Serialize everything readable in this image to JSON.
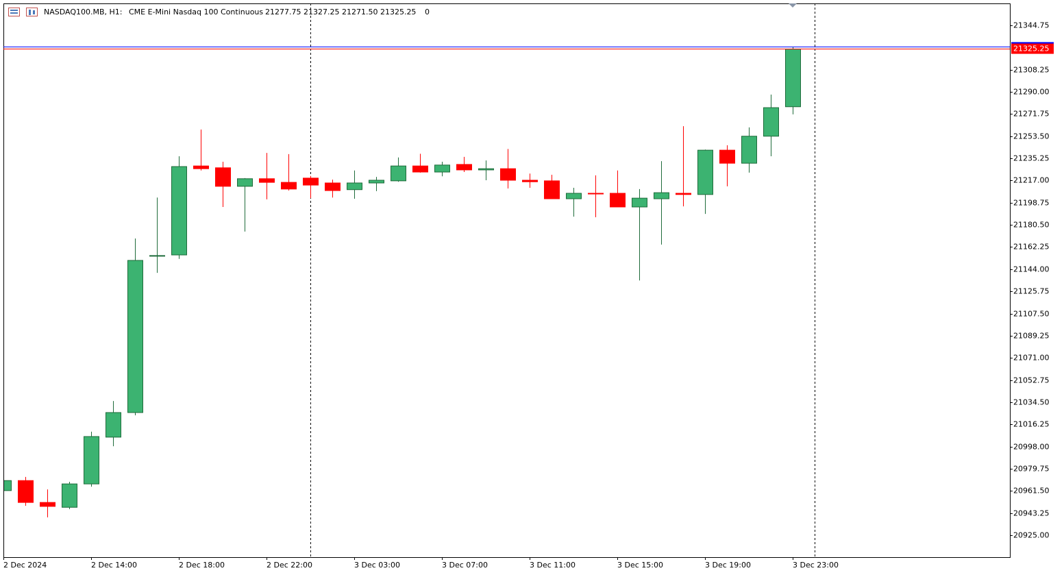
{
  "chart_data": {
    "type": "candlestick",
    "header": {
      "symbol": "NASDAQ100.MB, H1:",
      "description": "CME E-Mini Nasdaq 100 Continuous",
      "ohlc": "21277.75 21327.25 21271.50 21325.25",
      "volume": "0"
    },
    "categories": [
      "2 Dec 2024",
      null,
      null,
      null,
      "2 Dec 14:00",
      null,
      null,
      null,
      "2 Dec 18:00",
      null,
      null,
      null,
      "2 Dec 22:00",
      null,
      null,
      null,
      "3 Dec 03:00",
      null,
      null,
      null,
      "3 Dec 07:00",
      null,
      null,
      null,
      "3 Dec 11:00",
      null,
      null,
      null,
      "3 Dec 15:00",
      null,
      null,
      null,
      "3 Dec 19:00",
      null,
      null,
      null,
      "3 Dec 23:00"
    ],
    "open": [
      20961.75,
      20970.0,
      20952.0,
      20948.0,
      20967.25,
      21005.75,
      21026.0,
      21155.0,
      21155.75,
      21229.0,
      21227.5,
      21212.25,
      21218.5,
      21215.5,
      21219.0,
      21215.0,
      21209.5,
      21215.0,
      21216.75,
      21229.0,
      21224.0,
      21230.25,
      21225.75,
      21226.75,
      21217.25,
      21216.75,
      21202.0,
      21206.5,
      21206.5,
      21195.25,
      21202.0,
      21206.5,
      21205.5,
      21242.0,
      21231.25,
      21253.5,
      21277.75
    ],
    "high": [
      20971.25,
      20973.0,
      20962.75,
      20969.0,
      21010.25,
      21035.5,
      21169.25,
      21203.0,
      21237.0,
      21259.0,
      21232.5,
      21219.0,
      21239.75,
      21238.75,
      21220.75,
      21217.75,
      21225.25,
      21220.0,
      21236.0,
      21239.0,
      21232.5,
      21236.5,
      21233.5,
      21243.0,
      21222.75,
      21221.75,
      21211.0,
      21221.25,
      21225.25,
      21210.0,
      21233.0,
      21261.75,
      21242.5,
      21246.0,
      21260.75,
      21287.75,
      21327.25
    ],
    "low": [
      20960.5,
      20949.25,
      20939.75,
      20946.5,
      20965.0,
      20998.25,
      21023.75,
      21141.0,
      21152.5,
      21225.25,
      21195.25,
      21175.0,
      21201.5,
      21208.75,
      21202.5,
      21203.0,
      21202.0,
      21208.25,
      21216.0,
      21223.5,
      21220.5,
      21224.0,
      21217.25,
      21210.5,
      21211.0,
      21202.0,
      21187.25,
      21186.75,
      21195.25,
      21134.75,
      21164.25,
      21195.75,
      21189.5,
      21212.25,
      21223.5,
      21237.0,
      21271.5
    ],
    "close": [
      20970.0,
      20952.0,
      20948.75,
      20967.25,
      21006.25,
      21026.0,
      21151.25,
      21155.25,
      21228.5,
      21226.75,
      21212.25,
      21218.5,
      21215.5,
      21210.0,
      21213.25,
      21208.75,
      21215.0,
      21217.25,
      21229.0,
      21224.0,
      21229.75,
      21225.75,
      21226.75,
      21217.25,
      21216.0,
      21202.0,
      21206.5,
      21206.0,
      21195.25,
      21202.5,
      21207.0,
      21205.5,
      21242.0,
      21231.25,
      21253.5,
      21277.0,
      21325.25
    ],
    "up_color": "#3cb371",
    "up_edge": "#1e6b3a",
    "down_color": "#ff0000",
    "bid": 21325.25,
    "bid_color": "#ff0000",
    "ask": 21327.0,
    "ask_color": "#0000ff",
    "ylim": [
      20906.94,
      21362.8
    ],
    "yticks": [
      {
        "value": 21344.75,
        "label": "21344.75"
      },
      {
        "value": 21308.25,
        "label": "21308.25"
      },
      {
        "value": 21290.0,
        "label": "21290.00"
      },
      {
        "value": 21271.75,
        "label": "21271.75"
      },
      {
        "value": 21253.5,
        "label": "21253.50"
      },
      {
        "value": 21235.25,
        "label": "21235.25"
      },
      {
        "value": 21217.0,
        "label": "21217.00"
      },
      {
        "value": 21198.75,
        "label": "21198.75"
      },
      {
        "value": 21180.5,
        "label": "21180.50"
      },
      {
        "value": 21162.25,
        "label": "21162.25"
      },
      {
        "value": 21144.0,
        "label": "21144.00"
      },
      {
        "value": 21125.75,
        "label": "21125.75"
      },
      {
        "value": 21107.5,
        "label": "21107.50"
      },
      {
        "value": 21089.25,
        "label": "21089.25"
      },
      {
        "value": 21071.0,
        "label": "21071.00"
      },
      {
        "value": 21052.75,
        "label": "21052.75"
      },
      {
        "value": 21034.5,
        "label": "21034.50"
      },
      {
        "value": 21016.25,
        "label": "21016.25"
      },
      {
        "value": 20998.0,
        "label": "20998.00"
      },
      {
        "value": 20979.75,
        "label": "20979.75"
      },
      {
        "value": 20961.5,
        "label": "20961.50"
      },
      {
        "value": 20943.25,
        "label": "20943.25"
      },
      {
        "value": 20925.0,
        "label": "20925.00"
      }
    ],
    "grid": false
  }
}
